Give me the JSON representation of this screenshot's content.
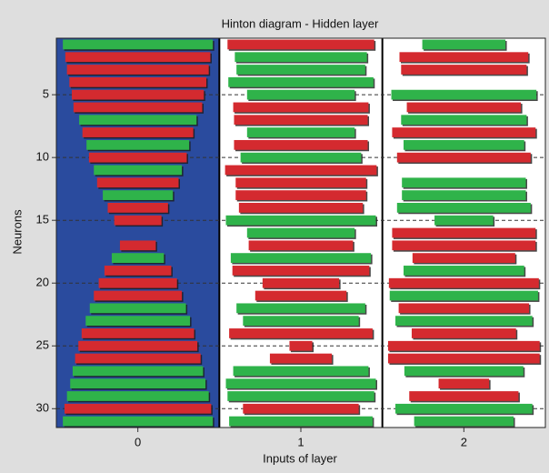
{
  "chart_data": {
    "type": "hinton",
    "title": "Hinton diagram - Hidden layer",
    "xlabel": "Inputs of layer",
    "ylabel": "Neurons",
    "xlim": [
      -0.5,
      2.5
    ],
    "xticks": [
      0,
      1,
      2
    ],
    "ylim": [
      31.5,
      0.5
    ],
    "yticks": [
      5,
      10,
      15,
      20,
      25,
      30
    ],
    "grid": true,
    "positive_color": "#2fb34a",
    "negative_color": "#d42a2f",
    "column_colors": [
      "#2a4b9e",
      "#ffffff",
      "#ffffff"
    ],
    "values": [
      [
        0.92,
        -0.89,
        -0.87,
        -0.84,
        -0.81,
        -0.79,
        0.72,
        -0.68,
        0.63,
        -0.6,
        0.54,
        -0.5,
        0.43,
        -0.37,
        -0.29,
        0,
        -0.22,
        0.32,
        -0.41,
        -0.48,
        -0.54,
        0.59,
        0.64,
        -0.69,
        -0.73,
        -0.77,
        0.8,
        0.83,
        0.87,
        -0.9,
        0.92
      ],
      [
        -0.9,
        0.81,
        0.79,
        0.89,
        0.66,
        -0.83,
        -0.82,
        0.66,
        -0.82,
        0.74,
        -0.93,
        -0.8,
        -0.8,
        -0.76,
        0.92,
        0.66,
        -0.64,
        0.86,
        -0.84,
        -0.47,
        -0.56,
        0.79,
        0.71,
        -0.88,
        -0.14,
        -0.38,
        0.83,
        0.92,
        0.9,
        -0.71,
        0.88
      ],
      [
        0.51,
        -0.79,
        -0.77,
        0,
        0.89,
        -0.7,
        0.77,
        -0.88,
        0.74,
        -0.82,
        0,
        0.76,
        0.76,
        0.82,
        0.36,
        -0.88,
        -0.88,
        -0.63,
        0.74,
        -0.92,
        0.91,
        -0.8,
        0.84,
        -0.64,
        -0.93,
        -0.93,
        0.73,
        -0.31,
        -0.67,
        0.84,
        0.61
      ]
    ]
  }
}
